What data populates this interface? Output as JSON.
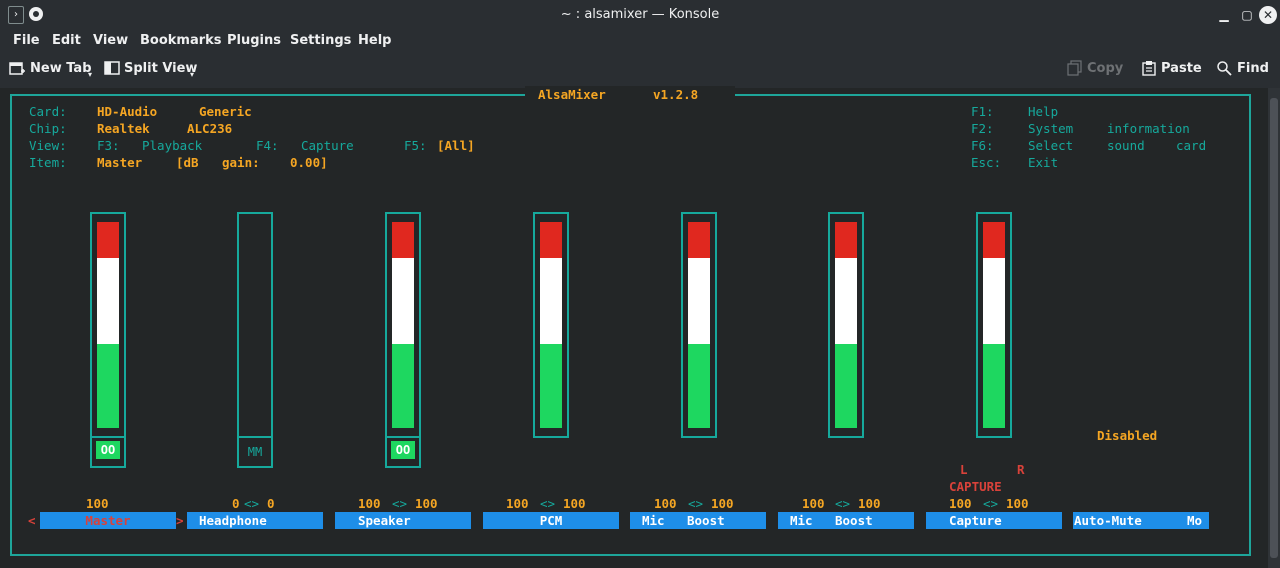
{
  "window": {
    "title": "~ : alsamixer — Konsole",
    "min_glyph": "▁",
    "max_glyph": "▢",
    "close_glyph": "✕"
  },
  "menu": [
    "File",
    "Edit",
    "View",
    "Bookmarks",
    "Plugins",
    "Settings",
    "Help"
  ],
  "toolbar": {
    "new_tab": "New Tab",
    "split_view": "Split View",
    "copy": "Copy",
    "paste": "Paste",
    "find": "Find"
  },
  "mixer": {
    "app_name": "AlsaMixer",
    "version": "v1.2.8",
    "card_label": "Card:",
    "card_value_1": "HD-Audio",
    "card_value_2": "Generic",
    "chip_label": "Chip:",
    "chip_value_1": "Realtek",
    "chip_value_2": "ALC236",
    "view_label": "View:",
    "view_f3": "F3:",
    "view_playback": "Playback",
    "view_f4": "F4:",
    "view_capture": "Capture",
    "view_f5": "F5:",
    "view_all": "[All]",
    "item_label": "Item:",
    "item_value_1": "Master",
    "item_value_2": "[dB",
    "item_value_3": "gain:",
    "item_value_4": "0.00]",
    "help": {
      "f1": "F1:",
      "f1_text": "Help",
      "f2": "F2:",
      "f2_text_1": "System",
      "f2_text_2": "information",
      "f6": "F6:",
      "f6_text_1": "Select",
      "f6_text_2": "sound",
      "f6_text_3": "card",
      "esc": "Esc:",
      "esc_text": "Exit"
    },
    "channels": {
      "master": {
        "label": "Master",
        "switch": "OO",
        "left": "100",
        "sep": "",
        "right": ""
      },
      "headphone": {
        "label": "Headphone",
        "switch": "MM",
        "left": "0",
        "sep": "<>",
        "right": "0"
      },
      "speaker": {
        "label": "Speaker",
        "switch": "OO",
        "left": "100",
        "sep": "<>",
        "right": "100"
      },
      "pcm": {
        "label": "PCM",
        "left": "100",
        "sep": "<>",
        "right": "100"
      },
      "mic_boost_1": {
        "label_a": "Mic",
        "label_b": "Boost",
        "left": "100",
        "sep": "<>",
        "right": "100"
      },
      "mic_boost_2": {
        "label_a": "Mic",
        "label_b": "Boost",
        "left": "100",
        "sep": "<>",
        "right": "100"
      },
      "capture": {
        "label": "Capture",
        "cap_l": "L",
        "cap_r": "R",
        "capture_flag": "CAPTURE",
        "left": "100",
        "sep": "<>",
        "right": "100"
      },
      "auto_mute": {
        "label_a": "Auto-Mute",
        "label_b": "Mo",
        "value": "Disabled"
      }
    },
    "selector_left": "<",
    "selector_right": ">"
  },
  "colors": {
    "accent": "#16a99c",
    "highlight": "#f5a623",
    "label_bg": "#1e8ee8",
    "meter_red": "#e0281f",
    "meter_green": "#1ed760"
  }
}
